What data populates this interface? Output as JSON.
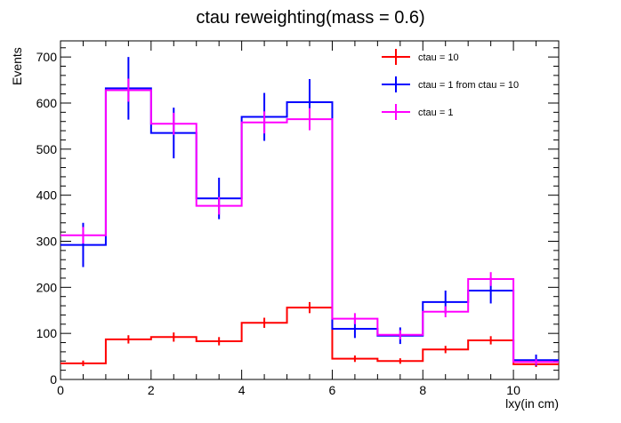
{
  "chart_data": {
    "type": "histogram",
    "title": "ctau reweighting(mass = 0.6)",
    "xlabel": "lxy(in cm)",
    "ylabel": "Events",
    "xlim": [
      0,
      11
    ],
    "ylim": [
      0,
      735
    ],
    "xticks": [
      0,
      2,
      4,
      6,
      8,
      10
    ],
    "yticks": [
      0,
      100,
      200,
      300,
      400,
      500,
      600,
      700
    ],
    "bin_edges": [
      0,
      1,
      2,
      3,
      4,
      5,
      6,
      7,
      8,
      9,
      10,
      11
    ],
    "legend_position": "top-right",
    "series": [
      {
        "name": "ctau = 10",
        "color": "#ff0000",
        "values": [
          35,
          87,
          92,
          83,
          123,
          156,
          45,
          40,
          65,
          85,
          33
        ],
        "errors": [
          6,
          9,
          10,
          9,
          11,
          12,
          7,
          6,
          8,
          9,
          6
        ]
      },
      {
        "name": "ctau = 1 from ctau = 10",
        "color": "#0000ff",
        "values": [
          292,
          632,
          535,
          393,
          570,
          602,
          110,
          95,
          168,
          193,
          42
        ],
        "errors": [
          48,
          68,
          55,
          45,
          52,
          50,
          20,
          18,
          25,
          28,
          12
        ]
      },
      {
        "name": "ctau = 1",
        "color": "#ff00ff",
        "values": [
          313,
          628,
          555,
          377,
          558,
          565,
          132,
          97,
          147,
          218,
          38
        ],
        "errors": [
          18,
          25,
          24,
          19,
          24,
          24,
          12,
          10,
          12,
          15,
          6
        ]
      }
    ]
  }
}
